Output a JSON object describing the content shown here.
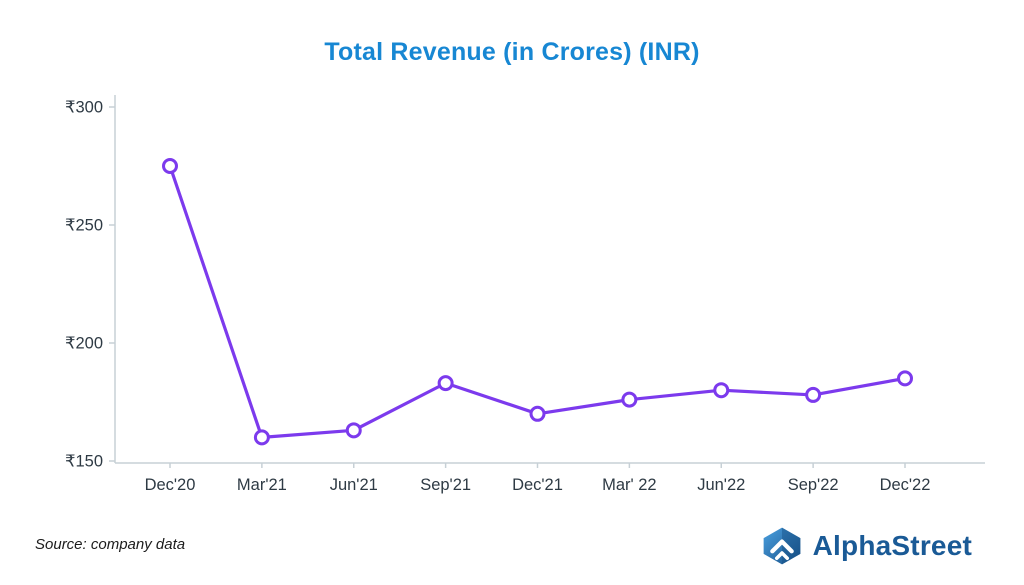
{
  "title": "Total Revenue (in Crores) (INR)",
  "source_note": "Source: company data",
  "logo": {
    "text": "AlphaStreet"
  },
  "colors": {
    "title": "#1787d3",
    "line": "#7c3aed",
    "marker_fill": "#ffffff",
    "axis": "#c7d0d6",
    "tick_text": "#2e3a44",
    "logo_text": "#1a5a96",
    "logo_icon_light": "#3e93d8",
    "logo_icon_dark": "#174f86"
  },
  "chart_data": {
    "type": "line",
    "title": "Total Revenue (in Crores) (INR)",
    "categories": [
      "Dec'20",
      "Mar'21",
      "Jun'21",
      "Sep'21",
      "Dec'21",
      "Mar' 22",
      "Jun'22",
      "Sep'22",
      "Dec'22"
    ],
    "series": [
      {
        "name": "Total Revenue",
        "values": [
          275,
          160,
          163,
          183,
          170,
          176,
          180,
          178,
          185
        ]
      }
    ],
    "xlabel": "",
    "ylabel": "",
    "ylim": [
      150,
      300
    ],
    "yticks": [
      {
        "value": 150,
        "label": "₹150"
      },
      {
        "value": 200,
        "label": "₹200"
      },
      {
        "value": 250,
        "label": "₹250"
      },
      {
        "value": 300,
        "label": "₹300"
      }
    ],
    "grid": false,
    "legend": "none",
    "marker": "open-circle",
    "currency": "INR"
  }
}
